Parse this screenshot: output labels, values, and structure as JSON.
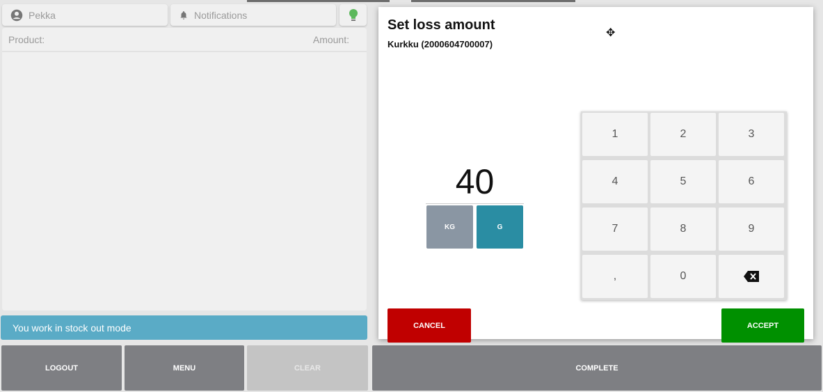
{
  "header": {
    "user": "Pekka",
    "notifications": "Notifications"
  },
  "list": {
    "product_label": "Product:",
    "amount_label": "Amount:"
  },
  "info_bar": "You work in stock out mode",
  "footer": {
    "logout": "LOGOUT",
    "menu": "MENU",
    "clear": "CLEAR",
    "complete": "COMPLETE"
  },
  "dialog": {
    "title": "Set loss amount",
    "product": "Kurkku (2000604700007)",
    "value": "40",
    "units": [
      {
        "label": "KG",
        "selected": false
      },
      {
        "label": "G",
        "selected": true
      }
    ],
    "keys": [
      "1",
      "2",
      "3",
      "4",
      "5",
      "6",
      "7",
      "8",
      "9",
      ",",
      "0"
    ],
    "cancel": "CANCEL",
    "accept": "ACCEPT"
  },
  "colors": {
    "info": "#5aabc6",
    "cancel": "#c00000",
    "accept": "#009000",
    "unit_selected": "#2a8da3",
    "unit": "#8a96a3",
    "footer": "#7e7f83",
    "indicator": "#5cb85c"
  }
}
